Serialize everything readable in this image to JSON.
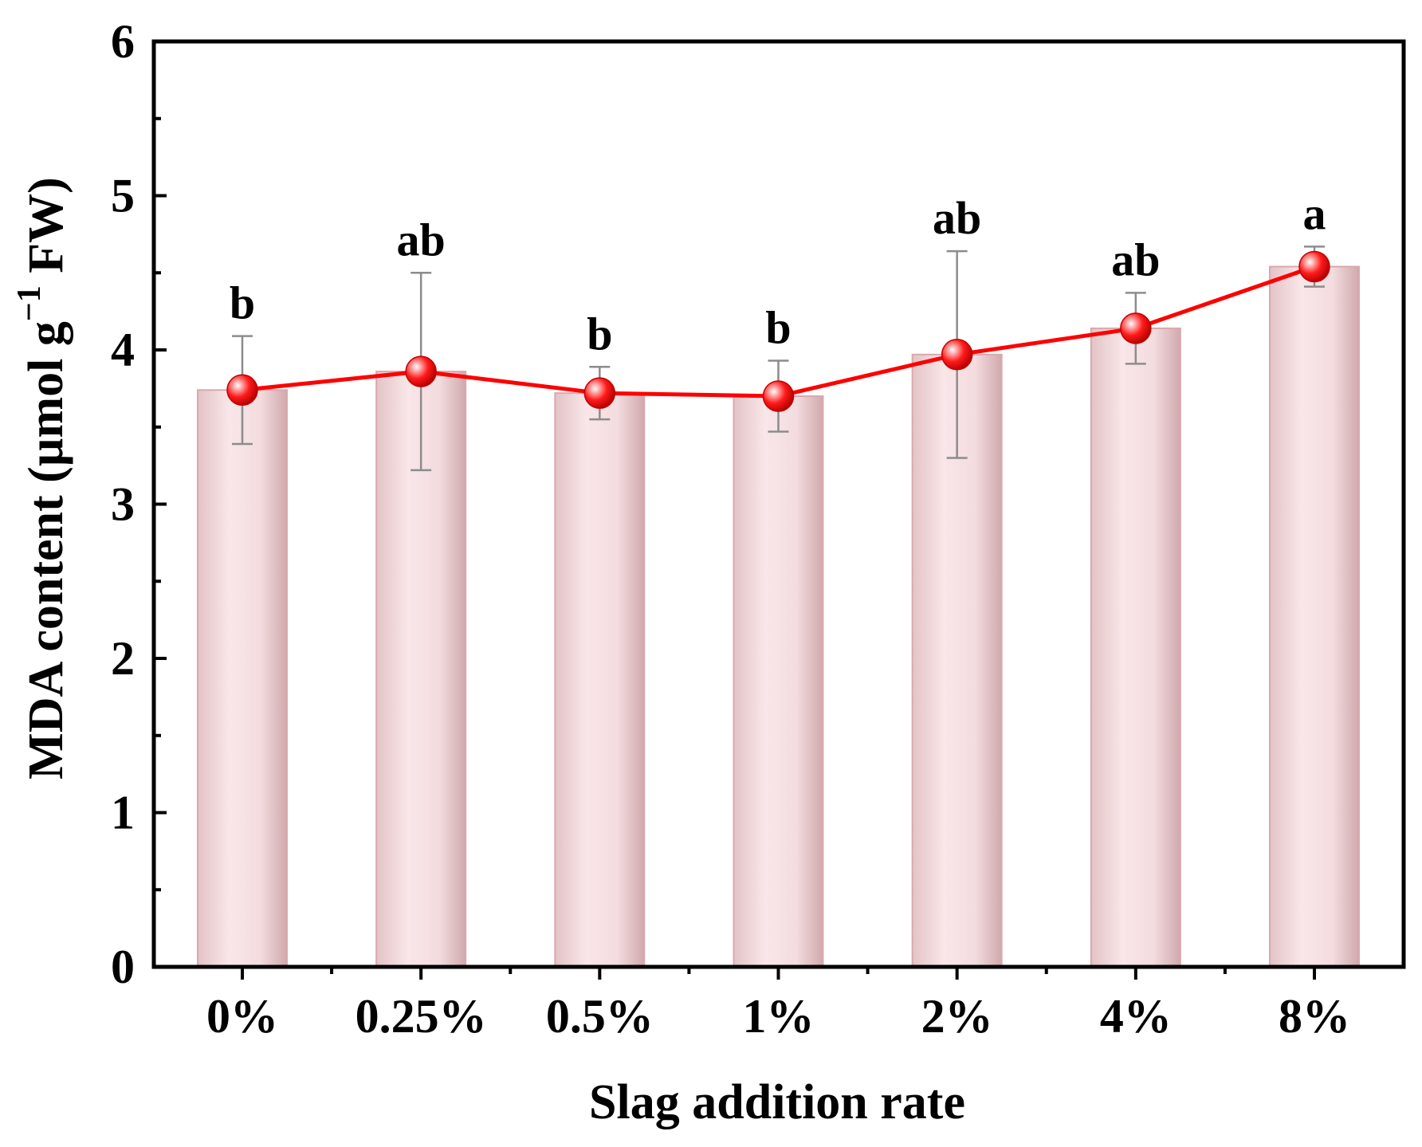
{
  "chart_data": {
    "type": "bar",
    "title": "",
    "xlabel": "Slag addition rate",
    "ylabel": {
      "main": "MDA content (µmol g",
      "sup": "−1",
      "tail": " FW)"
    },
    "ylim": [
      0,
      6
    ],
    "yticks": [
      "0",
      "1",
      "2",
      "3",
      "4",
      "5",
      "6"
    ],
    "categories": [
      "0%",
      "0.25%",
      "0.5%",
      "1%",
      "2%",
      "4%",
      "8%"
    ],
    "values": [
      3.74,
      3.86,
      3.72,
      3.7,
      3.97,
      4.14,
      4.54
    ],
    "errors": [
      0.35,
      0.64,
      0.17,
      0.23,
      0.67,
      0.23,
      0.13
    ],
    "significance": [
      "b",
      "ab",
      "b",
      "b",
      "ab",
      "ab",
      "a"
    ],
    "line_overlay": true,
    "grid": false,
    "colors": {
      "bar_fill": "#f2dadc",
      "bar_edge": "#d9a9ad",
      "line": "#ff0000",
      "marker": "#ff1a1a",
      "error_bar": "#8c8c8c",
      "axis": "#000000"
    }
  }
}
